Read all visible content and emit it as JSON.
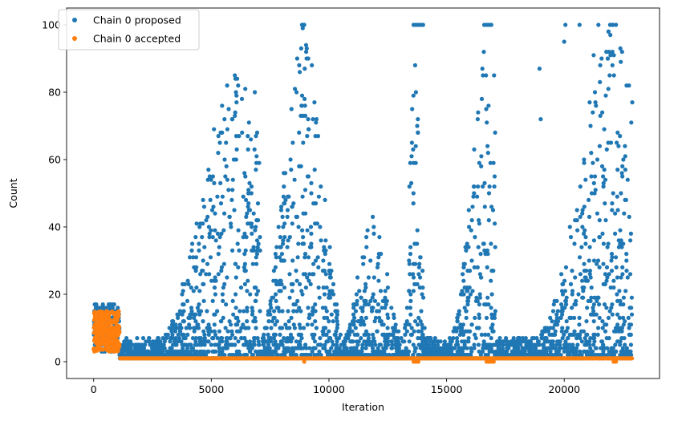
{
  "chart_data": {
    "type": "scatter",
    "xlabel": "Iteration",
    "ylabel": "Count",
    "xlim": [
      -1150,
      24050
    ],
    "ylim": [
      -5,
      105
    ],
    "xticks": [
      0,
      5000,
      10000,
      15000,
      20000
    ],
    "yticks": [
      0,
      20,
      40,
      60,
      80,
      100
    ],
    "grid": false,
    "legend_position": "top-left",
    "colors": {
      "proposed": "#1f77b4",
      "accepted": "#ff7f0e"
    },
    "series": [
      {
        "name": "Chain 0 proposed",
        "color": "#1f77b4",
        "description": "dense bursts of proposed counts across iterations",
        "segments": [
          {
            "x": [
              0,
              1100
            ],
            "y_max": 17
          },
          {
            "x": [
              1100,
              7100
            ],
            "y_max": 85,
            "peak_x": 6000
          },
          {
            "x": [
              7100,
              10500
            ],
            "y_max": 100,
            "peak_x": 8900
          },
          {
            "x": [
              10500,
              13200
            ],
            "y_max": 42
          },
          {
            "x": [
              13200,
              14100
            ],
            "y_max": 100
          },
          {
            "x": [
              14100,
              17100
            ],
            "y_max": 100,
            "peak_x": 16800
          },
          {
            "x": [
              17100,
              22900
            ],
            "y_max": 100,
            "peak_x": 22000
          }
        ],
        "highlights": [
          [
            8950,
            100
          ],
          [
            13600,
            100
          ],
          [
            13700,
            100
          ],
          [
            13800,
            100
          ],
          [
            13900,
            100
          ],
          [
            14000,
            100
          ],
          [
            16600,
            100
          ],
          [
            16700,
            100
          ],
          [
            16800,
            100
          ],
          [
            16900,
            100
          ],
          [
            20050,
            100
          ],
          [
            20650,
            100
          ],
          [
            21450,
            100
          ],
          [
            21950,
            100
          ],
          [
            22050,
            100
          ],
          [
            22200,
            100
          ],
          [
            6000,
            85
          ],
          [
            6100,
            84
          ],
          [
            6050,
            80
          ],
          [
            6850,
            80
          ],
          [
            6000,
            73
          ],
          [
            6950,
            68
          ],
          [
            8850,
            76
          ],
          [
            8900,
            73
          ],
          [
            18950,
            87
          ],
          [
            19000,
            72
          ],
          [
            20000,
            95
          ],
          [
            21250,
            91
          ],
          [
            21350,
            76
          ],
          [
            22850,
            71
          ],
          [
            22050,
            92
          ],
          [
            22050,
            88
          ]
        ]
      },
      {
        "name": "Chain 0 accepted",
        "color": "#ff7f0e",
        "description": "accepted counts near 1 after warm-up, 3-15 during warm-up",
        "segments": [
          {
            "x": [
              0,
              1100
            ],
            "y": [
              3,
              15
            ]
          },
          {
            "x": [
              1100,
              22900
            ],
            "y": [
              1,
              1
            ]
          }
        ]
      }
    ]
  }
}
